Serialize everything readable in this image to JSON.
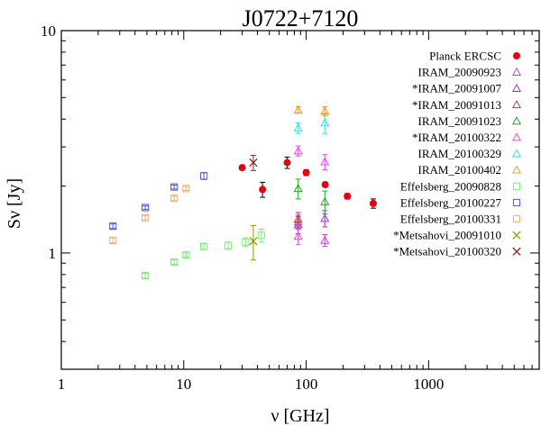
{
  "chart_data": {
    "type": "scatter",
    "title": "J0722+7120",
    "xlabel": "ν [GHz]",
    "ylabel": "Sν [Jy]",
    "xscale": "log",
    "yscale": "log",
    "xlim": [
      1,
      8000
    ],
    "ylim": [
      0.3,
      10
    ],
    "xticks": [
      {
        "value": 1,
        "label": "1"
      },
      {
        "value": 10,
        "label": "10"
      },
      {
        "value": 100,
        "label": "100"
      },
      {
        "value": 1000,
        "label": "1000"
      }
    ],
    "yticks": [
      {
        "value": 1,
        "label": "1"
      },
      {
        "value": 10,
        "label": "10"
      }
    ],
    "legend_position": "top-right",
    "series": [
      {
        "name": "Planck ERCSC",
        "marker": "dot",
        "color": "#e8000b",
        "points": [
          [
            30,
            2.42,
            0.05
          ],
          [
            44,
            1.93,
            0.15
          ],
          [
            70,
            2.55,
            0.15
          ],
          [
            100,
            2.3,
            0.07
          ],
          [
            143,
            2.03,
            0.05
          ],
          [
            217,
            1.8,
            0.05
          ],
          [
            353,
            1.67,
            0.08
          ]
        ]
      },
      {
        "name": "IRAM_20090923",
        "marker": "triangle",
        "color": "#cc44cc",
        "points": [
          [
            86,
            1.38,
            0.1
          ],
          [
            142,
            1.14,
            0.07
          ]
        ]
      },
      {
        "name": "*IRAM_20091007",
        "marker": "triangle",
        "color": "#9933cc",
        "points": [
          [
            86,
            1.34,
            0.12
          ],
          [
            142,
            1.43,
            0.12
          ]
        ]
      },
      {
        "name": "*IRAM_20091013",
        "marker": "triangle",
        "color": "#b04040",
        "points": [
          [
            86,
            1.42,
            0.1
          ]
        ]
      },
      {
        "name": "IRAM_20091023",
        "marker": "triangle",
        "color": "#22aa22",
        "points": [
          [
            86,
            1.95,
            0.2
          ],
          [
            142,
            1.7,
            0.2
          ]
        ]
      },
      {
        "name": "*IRAM_20100322",
        "marker": "triangle",
        "color": "#ee44ee",
        "points": [
          [
            86,
            2.88,
            0.15
          ],
          [
            142,
            2.57,
            0.2
          ],
          [
            86,
            1.19,
            0.1
          ]
        ]
      },
      {
        "name": "IRAM_20100329",
        "marker": "triangle",
        "color": "#33ddee",
        "points": [
          [
            86,
            3.65,
            0.2
          ],
          [
            142,
            3.85,
            0.4
          ]
        ]
      },
      {
        "name": "IRAM_20100402",
        "marker": "triangle",
        "color": "#ee9933",
        "points": [
          [
            86,
            4.4,
            0.15
          ],
          [
            142,
            4.35,
            0.2
          ]
        ]
      },
      {
        "name": "Effelsberg_20090828",
        "marker": "square",
        "color": "#77ee77",
        "points": [
          [
            4.85,
            0.79,
            0.02
          ],
          [
            8.35,
            0.91,
            0.02
          ],
          [
            10.45,
            0.98,
            0.02
          ],
          [
            14.6,
            1.07,
            0.03
          ],
          [
            23.05,
            1.08,
            0.04
          ],
          [
            32,
            1.12,
            0.05
          ],
          [
            43,
            1.2,
            0.08
          ]
        ]
      },
      {
        "name": "Effelsberg_20100227",
        "marker": "square",
        "color": "#5555dd",
        "points": [
          [
            2.64,
            1.32,
            0.03
          ],
          [
            4.85,
            1.6,
            0.03
          ],
          [
            8.35,
            1.98,
            0.04
          ],
          [
            14.6,
            2.22,
            0.08
          ]
        ]
      },
      {
        "name": "Effelsberg_20100331",
        "marker": "square",
        "color": "#f0b070",
        "points": [
          [
            2.64,
            1.14,
            0.03
          ],
          [
            4.85,
            1.44,
            0.03
          ],
          [
            8.35,
            1.76,
            0.04
          ],
          [
            10.45,
            1.95,
            0.04
          ]
        ]
      },
      {
        "name": "*Metsahovi_20091010",
        "marker": "x",
        "color": "#999900",
        "points": [
          [
            37,
            1.13,
            0.2
          ]
        ]
      },
      {
        "name": "*Metsahovi_20100320",
        "marker": "x",
        "color": "#8b2222",
        "points": [
          [
            37,
            2.55,
            0.2
          ]
        ]
      }
    ]
  }
}
